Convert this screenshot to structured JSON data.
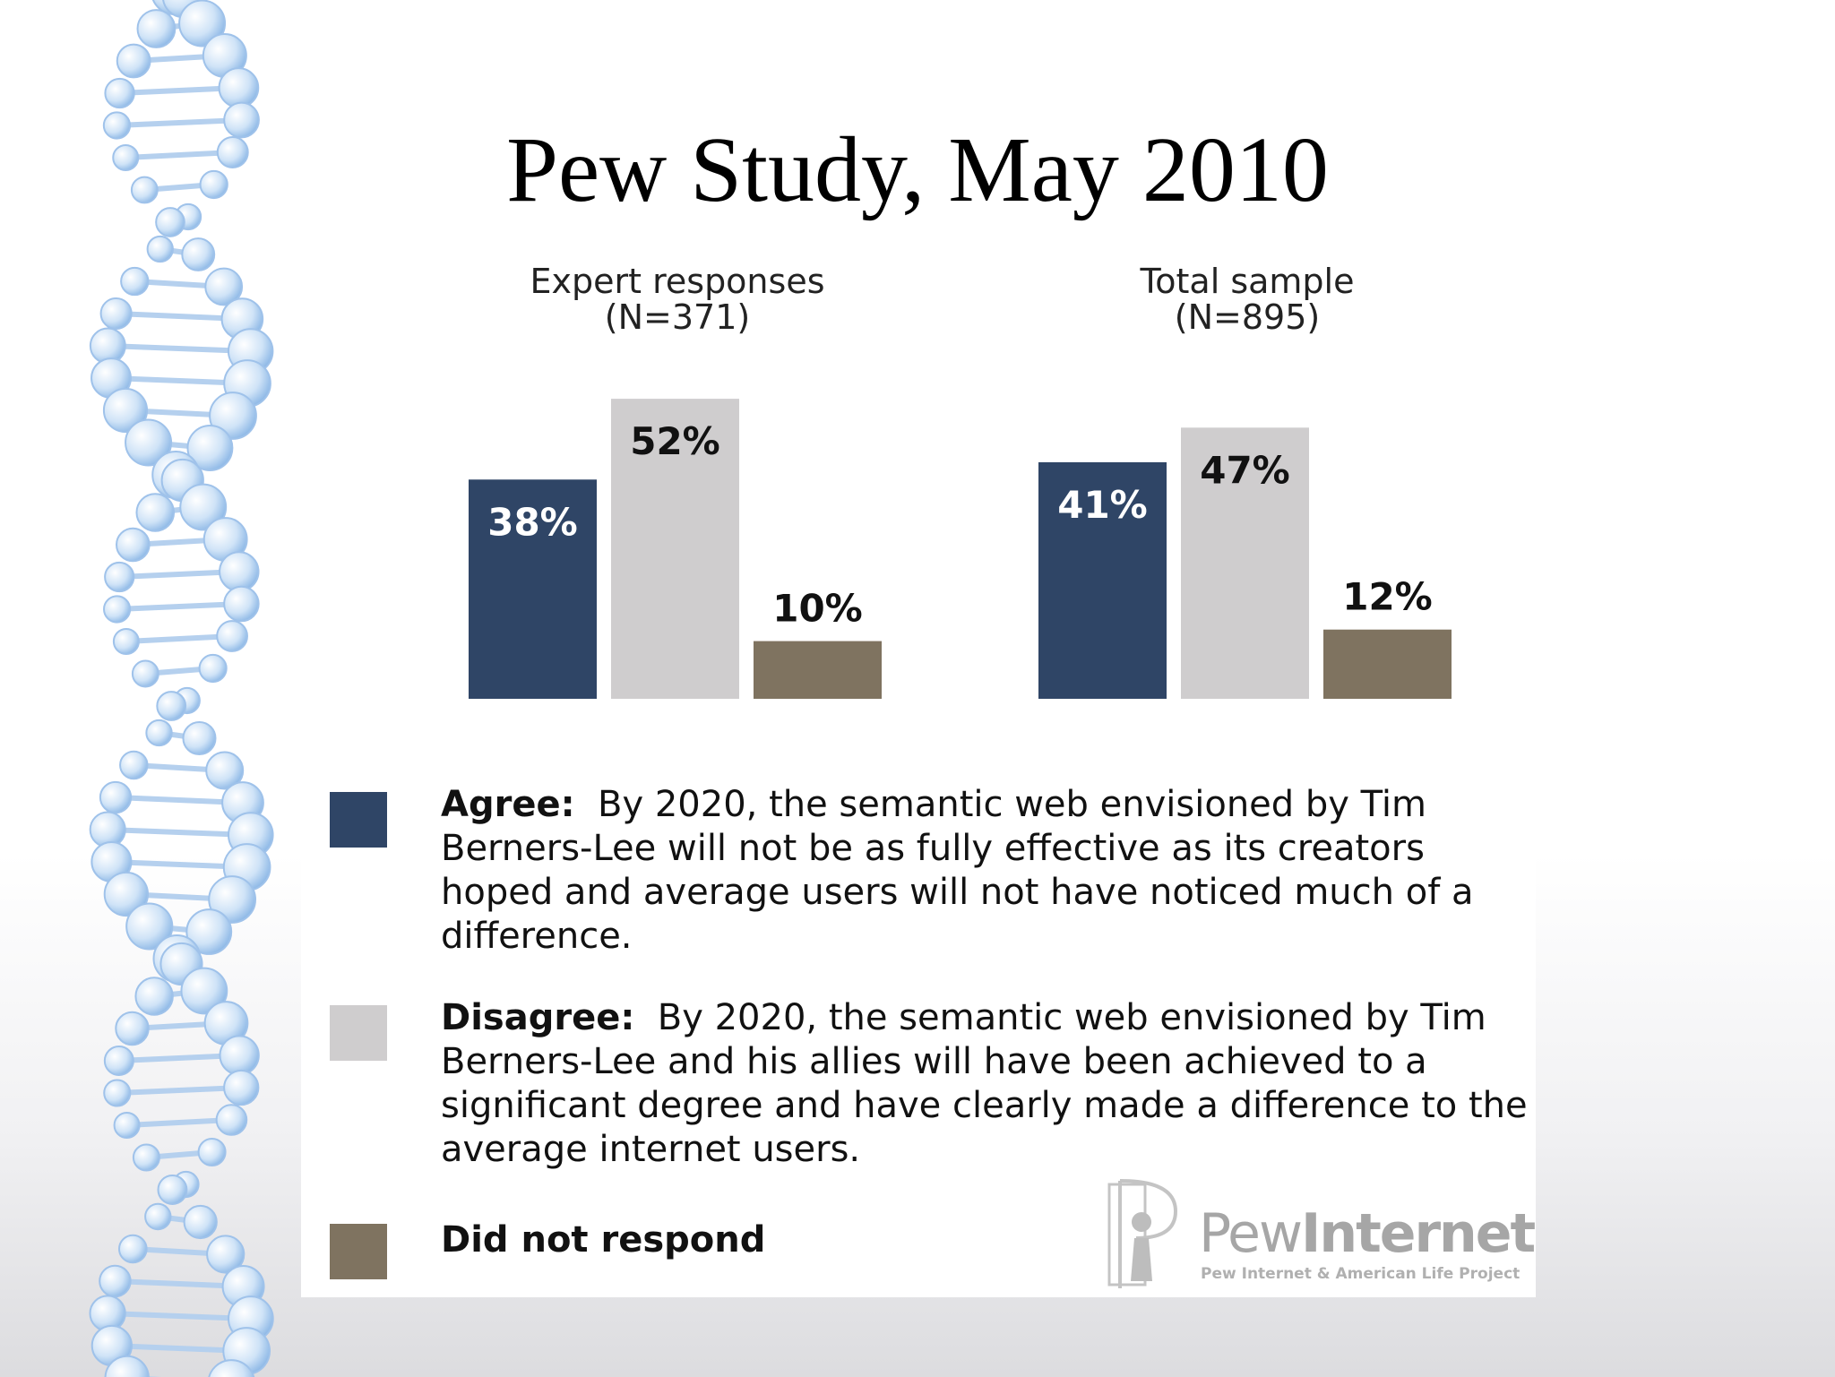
{
  "slide": {
    "title": "Pew Study, May 2010"
  },
  "colors": {
    "agree": "#2f4566",
    "disagree": "#cfcdce",
    "no_response": "#7f7360",
    "bar_label_dark": "#ffffff",
    "bar_label_light": "#111111"
  },
  "chart_data": {
    "type": "bar",
    "categories": [
      "Agree",
      "Disagree",
      "Did not respond"
    ],
    "groups": [
      {
        "title": "Expert responses",
        "subtitle": "(N=371)",
        "values": [
          38,
          52,
          10
        ],
        "labels": [
          "38%",
          "52%",
          "10%"
        ]
      },
      {
        "title": "Total sample",
        "subtitle": "(N=895)",
        "values": [
          41,
          47,
          12
        ],
        "labels": [
          "41%",
          "47%",
          "12%"
        ]
      }
    ],
    "unit": "%",
    "grid": false,
    "legend_position": "bottom"
  },
  "legend": {
    "agree": {
      "label": "Agree:",
      "text": "By 2020, the semantic web envisioned by Tim Berners-Lee will not be as fully effective as its creators hoped and average users will not have noticed much of a difference."
    },
    "disagree": {
      "label": "Disagree:",
      "text": "By 2020, the semantic web envisioned by Tim Berners-Lee and his allies will have been achieved to a significant degree and have clearly made a difference to the average internet users."
    },
    "no_response": {
      "label": "Did not respond"
    }
  },
  "logo": {
    "name_light": "Pew",
    "name_bold": "Internet",
    "tagline": "Pew Internet & American Life Project"
  }
}
